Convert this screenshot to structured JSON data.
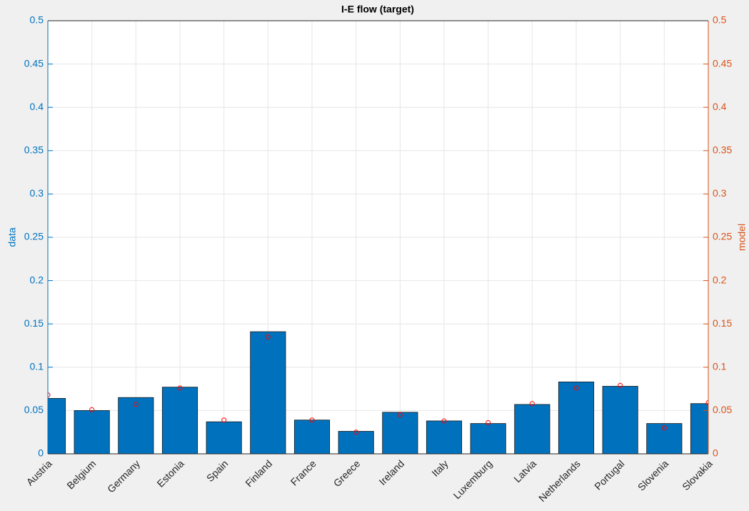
{
  "chart_data": {
    "type": "bar",
    "title": "I-E flow (target)",
    "categories": [
      "Austria",
      "Belgium",
      "Germany",
      "Estonia",
      "Spain",
      "Finland",
      "France",
      "Greece",
      "Ireland",
      "Italy",
      "Luxemburg",
      "Latvia",
      "Netherlands",
      "Portugal",
      "Slovenia",
      "Slovakia"
    ],
    "y_label": "data",
    "y2_label": "model",
    "series": [
      {
        "name": "data",
        "color": "#0072bd",
        "values": [
          0.064,
          0.05,
          0.065,
          0.077,
          0.037,
          0.141,
          0.039,
          0.026,
          0.048,
          0.038,
          0.035,
          0.057,
          0.083,
          0.078,
          0.035,
          0.058
        ]
      },
      {
        "name": "model",
        "color": "#ff0000",
        "axis": "y2",
        "values": [
          0.068,
          0.051,
          0.057,
          0.076,
          0.039,
          0.135,
          0.039,
          0.025,
          0.045,
          0.038,
          0.036,
          0.058,
          0.076,
          0.079,
          0.03,
          0.059
        ]
      }
    ],
    "ylim": [
      0,
      0.5
    ],
    "yticks": [
      0,
      0.05,
      0.1,
      0.15,
      0.2,
      0.25,
      0.3,
      0.35,
      0.4,
      0.45,
      0.5
    ],
    "y2lim": [
      0,
      0.5
    ],
    "y2ticks": [
      0,
      0.05,
      0.1,
      0.15,
      0.2,
      0.25,
      0.3,
      0.35,
      0.4,
      0.45,
      0.5
    ],
    "grid": true,
    "y_color": "#0072bd",
    "y2_color": "#d95319"
  }
}
